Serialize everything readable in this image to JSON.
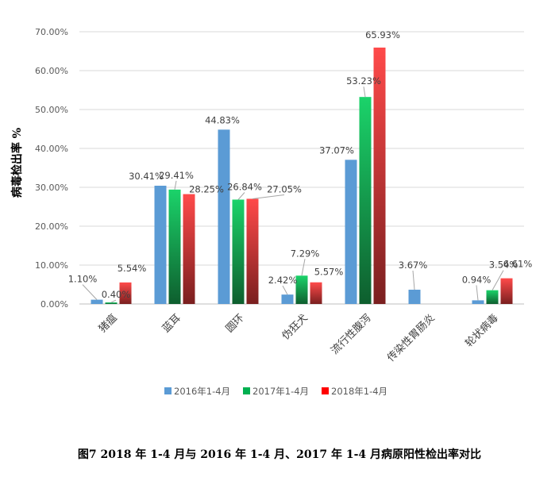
{
  "caption": "图7  2018 年 1-4 月与 2016 年 1-4 月、2017 年 1-4 月病原阳性检出率对比",
  "chart_data": {
    "type": "bar",
    "ylabel": "病毒检出率 %",
    "ylim": [
      0,
      70
    ],
    "yticks": [
      0,
      10,
      20,
      30,
      40,
      50,
      60,
      70
    ],
    "ytick_labels": [
      "0.00%",
      "10.00%",
      "20.00%",
      "30.00%",
      "40.00%",
      "50.00%",
      "60.00%",
      "70.00%"
    ],
    "grid": true,
    "legend_position": "bottom",
    "categories": [
      "猪瘟",
      "蓝耳",
      "圆环",
      "伪狂犬",
      "流行性腹泻",
      "传染性胃肠炎",
      "轮状病毒"
    ],
    "series": [
      {
        "name": "2016年1-4月",
        "color": "#5B9BD5",
        "values": [
          1.1,
          30.41,
          44.83,
          2.42,
          37.07,
          3.67,
          0.94
        ],
        "labels": [
          "1.10%",
          "30.41%",
          "44.83%",
          "2.42%",
          "37.07%",
          "3.67%",
          "0.94%"
        ]
      },
      {
        "name": "2017年1-4月",
        "color": "#00B050",
        "values": [
          0.4,
          29.41,
          26.84,
          7.29,
          53.23,
          null,
          3.54
        ],
        "labels": [
          "0.40%",
          "29.41%",
          "26.84%",
          "7.29%",
          "53.23%",
          "",
          "3.54%"
        ]
      },
      {
        "name": "2018年1-4月",
        "color": "#FF0000",
        "values": [
          5.54,
          28.25,
          27.05,
          5.57,
          65.93,
          null,
          6.61
        ],
        "labels": [
          "5.54%",
          "28.25%",
          "27.05%",
          "5.57%",
          "65.93%",
          "",
          "6.61%"
        ]
      }
    ]
  }
}
